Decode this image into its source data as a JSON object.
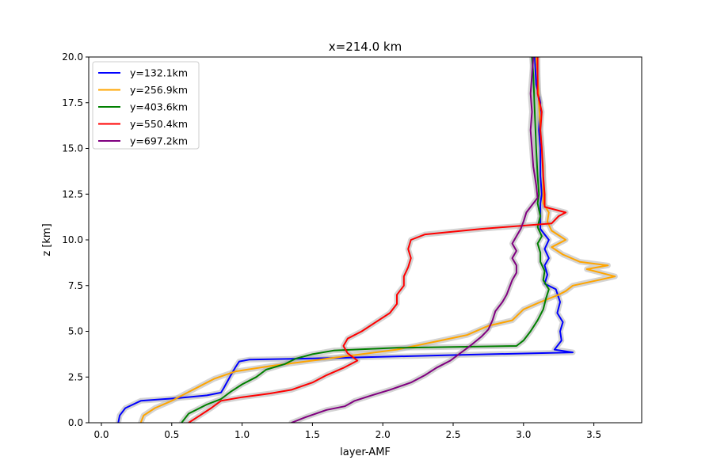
{
  "chart_data": {
    "type": "line",
    "title": "x=214.0 km",
    "xlabel": "layer-AMF",
    "ylabel": "z [km]",
    "xlim": [
      -0.09,
      3.84
    ],
    "ylim": [
      0,
      20
    ],
    "xticks": [
      "0.0",
      "0.5",
      "1.0",
      "1.5",
      "2.0",
      "2.5",
      "3.0",
      "3.5"
    ],
    "yticks": [
      "0.0",
      "2.5",
      "5.0",
      "7.5",
      "10.0",
      "12.5",
      "15.0",
      "17.5",
      "20.0"
    ],
    "grid": false,
    "legend_position": "upper-left",
    "uncertainty_band_color": "#b0b0b0",
    "series": [
      {
        "name": "y=132.1km",
        "color": "#0000ff",
        "points": [
          [
            0.12,
            0.0
          ],
          [
            0.13,
            0.4
          ],
          [
            0.17,
            0.8
          ],
          [
            0.28,
            1.2
          ],
          [
            0.55,
            1.35
          ],
          [
            0.75,
            1.5
          ],
          [
            0.85,
            1.65
          ],
          [
            0.87,
            1.9
          ],
          [
            0.92,
            2.6
          ],
          [
            0.95,
            3.0
          ],
          [
            0.98,
            3.35
          ],
          [
            1.05,
            3.45
          ],
          [
            1.7,
            3.55
          ],
          [
            2.5,
            3.7
          ],
          [
            3.35,
            3.85
          ],
          [
            3.22,
            4.0
          ],
          [
            3.27,
            4.5
          ],
          [
            3.26,
            5.0
          ],
          [
            3.28,
            5.5
          ],
          [
            3.24,
            6.0
          ],
          [
            3.26,
            6.6
          ],
          [
            3.23,
            7.3
          ],
          [
            3.15,
            7.6
          ],
          [
            3.17,
            8.1
          ],
          [
            3.15,
            8.6
          ],
          [
            3.18,
            9.0
          ],
          [
            3.15,
            9.5
          ],
          [
            3.18,
            10.0
          ],
          [
            3.12,
            10.6
          ],
          [
            3.12,
            12.0
          ],
          [
            3.13,
            12.5
          ],
          [
            3.12,
            13.5
          ],
          [
            3.12,
            15.0
          ],
          [
            3.11,
            16.0
          ],
          [
            3.12,
            17.5
          ],
          [
            3.09,
            18.5
          ],
          [
            3.08,
            20.0
          ]
        ]
      },
      {
        "name": "y=256.9km",
        "color": "#ffa500",
        "points": [
          [
            0.28,
            0.0
          ],
          [
            0.3,
            0.4
          ],
          [
            0.38,
            0.8
          ],
          [
            0.5,
            1.2
          ],
          [
            0.6,
            1.6
          ],
          [
            0.7,
            2.0
          ],
          [
            0.8,
            2.4
          ],
          [
            0.95,
            2.8
          ],
          [
            1.2,
            3.1
          ],
          [
            1.5,
            3.4
          ],
          [
            1.8,
            3.7
          ],
          [
            2.1,
            4.0
          ],
          [
            2.35,
            4.4
          ],
          [
            2.6,
            4.8
          ],
          [
            2.75,
            5.3
          ],
          [
            2.92,
            5.6
          ],
          [
            3.0,
            6.2
          ],
          [
            3.12,
            6.6
          ],
          [
            3.25,
            7.0
          ],
          [
            3.3,
            7.2
          ],
          [
            3.35,
            7.5
          ],
          [
            3.65,
            8.0
          ],
          [
            3.45,
            8.4
          ],
          [
            3.6,
            8.6
          ],
          [
            3.4,
            8.8
          ],
          [
            3.28,
            9.2
          ],
          [
            3.2,
            9.6
          ],
          [
            3.3,
            10.0
          ],
          [
            3.2,
            10.5
          ],
          [
            3.17,
            11.0
          ],
          [
            3.18,
            11.5
          ],
          [
            3.14,
            12.0
          ],
          [
            3.14,
            13.0
          ],
          [
            3.14,
            14.0
          ],
          [
            3.13,
            15.0
          ],
          [
            3.12,
            16.0
          ],
          [
            3.11,
            17.5
          ],
          [
            3.1,
            19.0
          ],
          [
            3.09,
            20.0
          ]
        ]
      },
      {
        "name": "y=403.6km",
        "color": "#008000",
        "points": [
          [
            0.57,
            0.0
          ],
          [
            0.62,
            0.5
          ],
          [
            0.75,
            1.0
          ],
          [
            0.85,
            1.3
          ],
          [
            0.92,
            1.7
          ],
          [
            1.0,
            2.1
          ],
          [
            1.1,
            2.5
          ],
          [
            1.17,
            2.9
          ],
          [
            1.3,
            3.2
          ],
          [
            1.38,
            3.5
          ],
          [
            1.5,
            3.75
          ],
          [
            1.65,
            3.95
          ],
          [
            2.1,
            4.1
          ],
          [
            2.95,
            4.2
          ],
          [
            3.0,
            4.5
          ],
          [
            3.05,
            5.0
          ],
          [
            3.1,
            5.6
          ],
          [
            3.14,
            6.2
          ],
          [
            3.16,
            6.8
          ],
          [
            3.18,
            7.3
          ],
          [
            3.14,
            7.8
          ],
          [
            3.15,
            8.3
          ],
          [
            3.12,
            8.8
          ],
          [
            3.12,
            9.3
          ],
          [
            3.1,
            9.8
          ],
          [
            3.13,
            10.2
          ],
          [
            3.1,
            10.7
          ],
          [
            3.12,
            11.3
          ],
          [
            3.1,
            12.0
          ],
          [
            3.11,
            12.5
          ],
          [
            3.1,
            13.5
          ],
          [
            3.09,
            15.0
          ],
          [
            3.08,
            17.0
          ],
          [
            3.07,
            19.0
          ],
          [
            3.06,
            20.0
          ]
        ]
      },
      {
        "name": "y=550.4km",
        "color": "#ff0000",
        "points": [
          [
            0.62,
            0.0
          ],
          [
            0.7,
            0.4
          ],
          [
            0.78,
            0.8
          ],
          [
            0.85,
            1.2
          ],
          [
            1.0,
            1.4
          ],
          [
            1.2,
            1.6
          ],
          [
            1.35,
            1.8
          ],
          [
            1.5,
            2.2
          ],
          [
            1.6,
            2.6
          ],
          [
            1.72,
            3.0
          ],
          [
            1.82,
            3.4
          ],
          [
            1.75,
            3.8
          ],
          [
            1.72,
            4.2
          ],
          [
            1.75,
            4.6
          ],
          [
            1.85,
            5.0
          ],
          [
            1.95,
            5.5
          ],
          [
            2.05,
            6.0
          ],
          [
            2.1,
            6.5
          ],
          [
            2.1,
            7.0
          ],
          [
            2.15,
            7.5
          ],
          [
            2.15,
            8.0
          ],
          [
            2.18,
            8.5
          ],
          [
            2.2,
            9.0
          ],
          [
            2.18,
            9.5
          ],
          [
            2.2,
            10.0
          ],
          [
            2.3,
            10.3
          ],
          [
            2.7,
            10.6
          ],
          [
            3.2,
            10.9
          ],
          [
            3.25,
            11.3
          ],
          [
            3.3,
            11.5
          ],
          [
            3.15,
            11.8
          ],
          [
            3.15,
            12.5
          ],
          [
            3.14,
            13.5
          ],
          [
            3.13,
            15.0
          ],
          [
            3.12,
            16.0
          ],
          [
            3.13,
            17.0
          ],
          [
            3.1,
            18.0
          ],
          [
            3.1,
            20.0
          ]
        ]
      },
      {
        "name": "y=697.2km",
        "color": "#800080",
        "points": [
          [
            1.35,
            0.0
          ],
          [
            1.45,
            0.3
          ],
          [
            1.6,
            0.7
          ],
          [
            1.73,
            0.9
          ],
          [
            1.8,
            1.2
          ],
          [
            1.92,
            1.5
          ],
          [
            2.05,
            1.8
          ],
          [
            2.2,
            2.2
          ],
          [
            2.3,
            2.6
          ],
          [
            2.38,
            3.0
          ],
          [
            2.48,
            3.4
          ],
          [
            2.55,
            3.8
          ],
          [
            2.62,
            4.2
          ],
          [
            2.7,
            4.7
          ],
          [
            2.75,
            5.1
          ],
          [
            2.78,
            5.6
          ],
          [
            2.8,
            6.1
          ],
          [
            2.85,
            6.6
          ],
          [
            2.88,
            7.0
          ],
          [
            2.9,
            7.4
          ],
          [
            2.92,
            7.8
          ],
          [
            2.95,
            8.2
          ],
          [
            2.95,
            8.6
          ],
          [
            2.92,
            9.0
          ],
          [
            2.95,
            9.4
          ],
          [
            2.92,
            9.8
          ],
          [
            2.95,
            10.2
          ],
          [
            2.98,
            10.6
          ],
          [
            3.0,
            11.0
          ],
          [
            3.02,
            11.5
          ],
          [
            3.06,
            11.9
          ],
          [
            3.1,
            12.3
          ],
          [
            3.09,
            13.0
          ],
          [
            3.07,
            14.0
          ],
          [
            3.06,
            15.0
          ],
          [
            3.05,
            16.0
          ],
          [
            3.06,
            17.0
          ],
          [
            3.05,
            18.0
          ],
          [
            3.06,
            19.0
          ],
          [
            3.07,
            20.0
          ]
        ]
      }
    ]
  }
}
